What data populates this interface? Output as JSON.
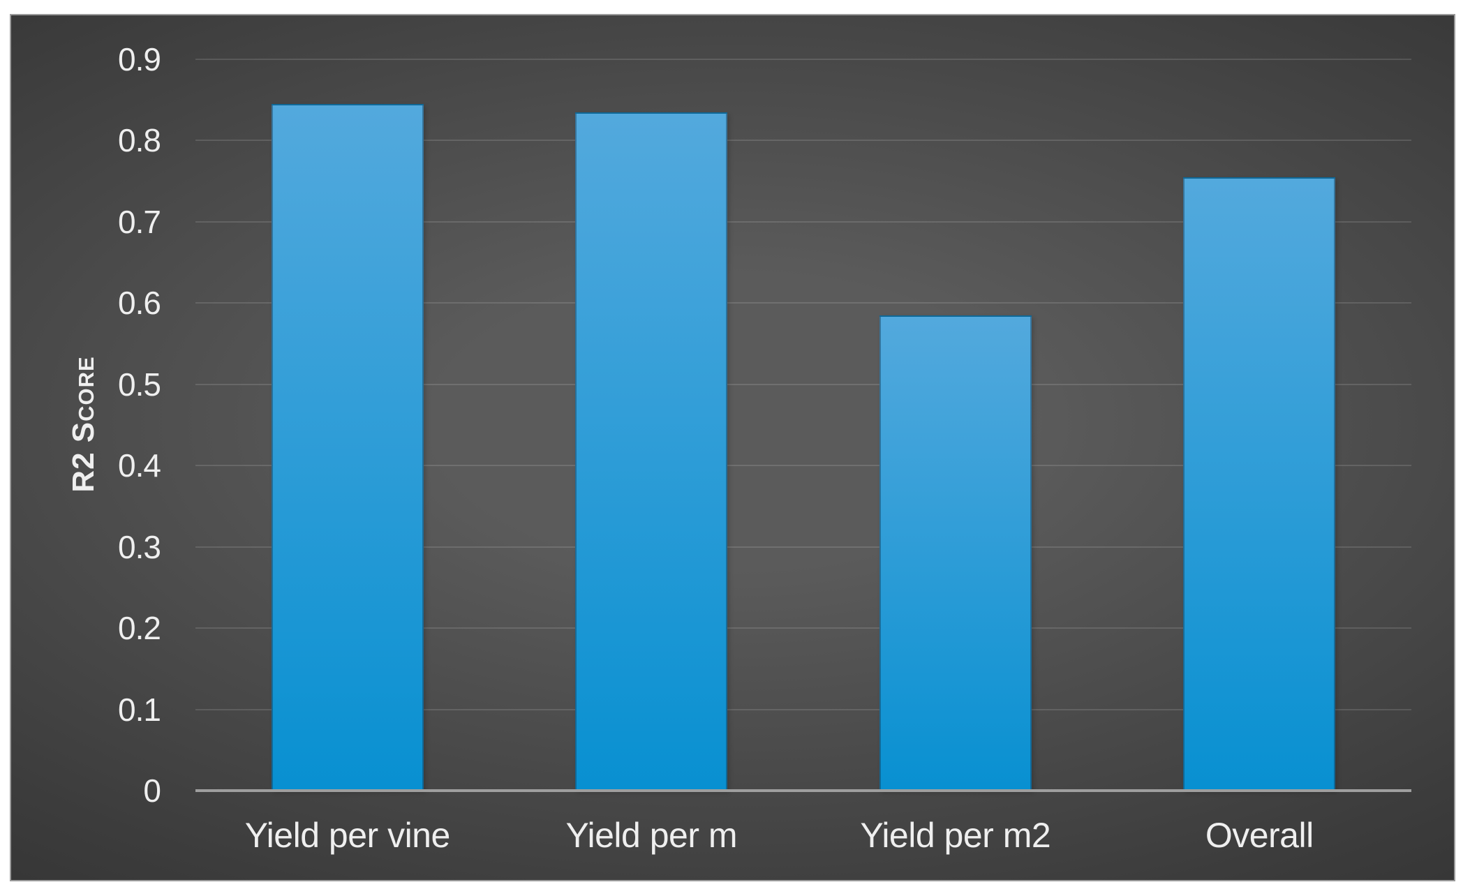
{
  "chart_data": {
    "type": "bar",
    "title": "",
    "ylabel": "R2 Score",
    "xlabel": "",
    "categories": [
      "Yield per vine",
      "Yield per m",
      "Yield per m2",
      "Overall"
    ],
    "values": [
      0.845,
      0.835,
      0.585,
      0.755
    ],
    "ylim": [
      0,
      0.9
    ],
    "ytick_labels": [
      "0",
      "0.1",
      "0.2",
      "0.3",
      "0.4",
      "0.5",
      "0.6",
      "0.7",
      "0.8",
      "0.9"
    ],
    "grid": true,
    "legend": false,
    "layout_hints": {
      "bar_style": "vertical, single series, gradient fill",
      "background": "dark panel with radial gradient, white page margin",
      "legend_position": "none"
    },
    "colors": {
      "bar_gradient_top": "#53a9dd",
      "bar_gradient_bottom": "#0890d1",
      "bar_outline": "rgba(25,55,80,0.45)",
      "plot_bg_center": "#5b5b5b",
      "plot_bg_mid": "#3c3c3c",
      "plot_bg_edge": "#252525",
      "gridline": "rgba(255,255,255,0.13)",
      "axis_line": "#9f9f9f",
      "text": "#efefef",
      "figure_background": "#ffffff",
      "canvas_border": "#9b9b9b"
    }
  }
}
